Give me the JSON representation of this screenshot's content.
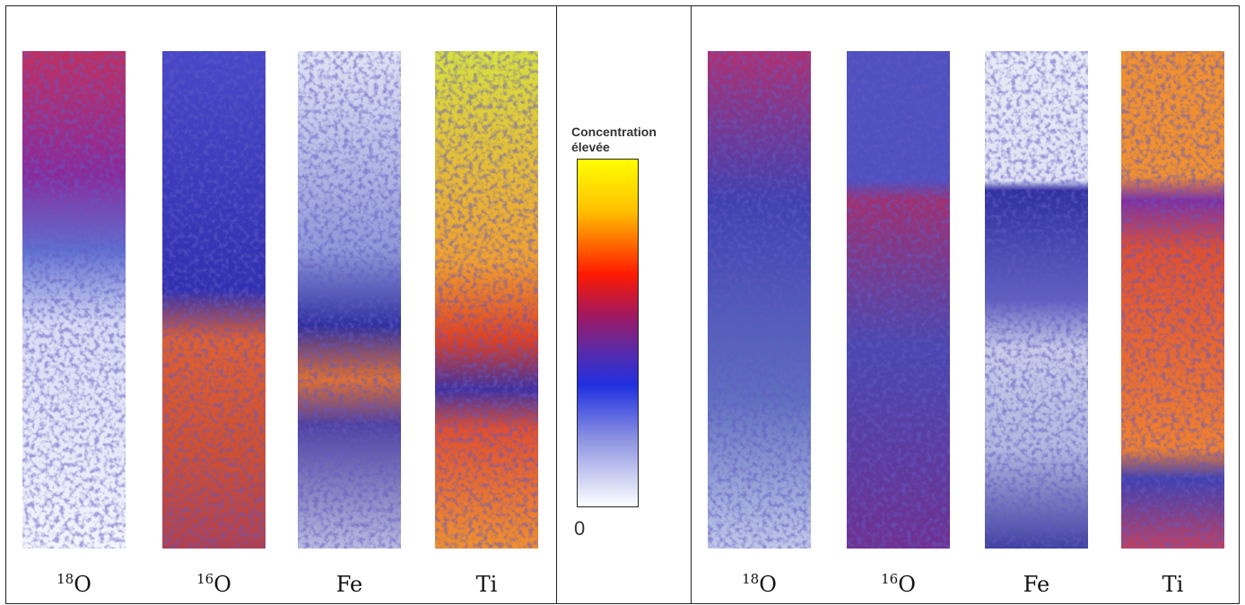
{
  "left_panel": {
    "maps": [
      {
        "superscript": "18",
        "symbol": "O"
      },
      {
        "superscript": "16",
        "symbol": "O"
      },
      {
        "symbol": "Fe"
      },
      {
        "symbol": "Ti"
      }
    ]
  },
  "colorbar": {
    "label_line1": "Concentration",
    "label_line2": "élevée",
    "min_label": "0"
  },
  "right_panel": {
    "maps": [
      {
        "superscript": "18",
        "symbol": "O"
      },
      {
        "superscript": "16",
        "symbol": "O"
      },
      {
        "symbol": "Fe"
      },
      {
        "symbol": "Ti"
      }
    ]
  }
}
